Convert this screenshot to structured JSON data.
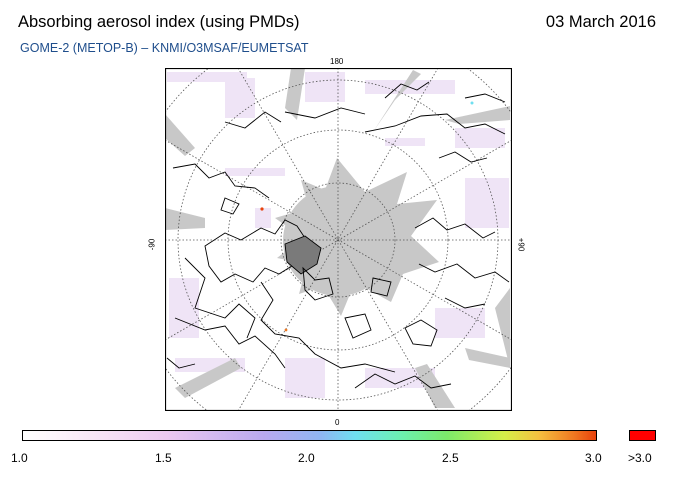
{
  "header": {
    "title": "Absorbing aerosol index (using PMDs)",
    "date": "03 March 2016",
    "subtitle": "GOME-2 (METOP-B)  –  KNMI/O3MSAF/EUMETSAT"
  },
  "map": {
    "projection": "polar-stereographic-north",
    "longitude_labels": {
      "top": "180",
      "bottom": "0",
      "left": "-90",
      "right": "+90"
    },
    "latitude_circles": 4,
    "meridian_step_deg": 30,
    "no_data_color": "#c8c8c8",
    "coast_color": "#000000"
  },
  "colorbar": {
    "min_label": "1.0",
    "ticks": [
      "1.0",
      "1.5",
      "2.0",
      "2.5",
      "3.0"
    ],
    "overflow_label": ">3.0",
    "overflow_color": "#ff0000"
  },
  "colors": {
    "subtitle": "#1f4e8c"
  }
}
